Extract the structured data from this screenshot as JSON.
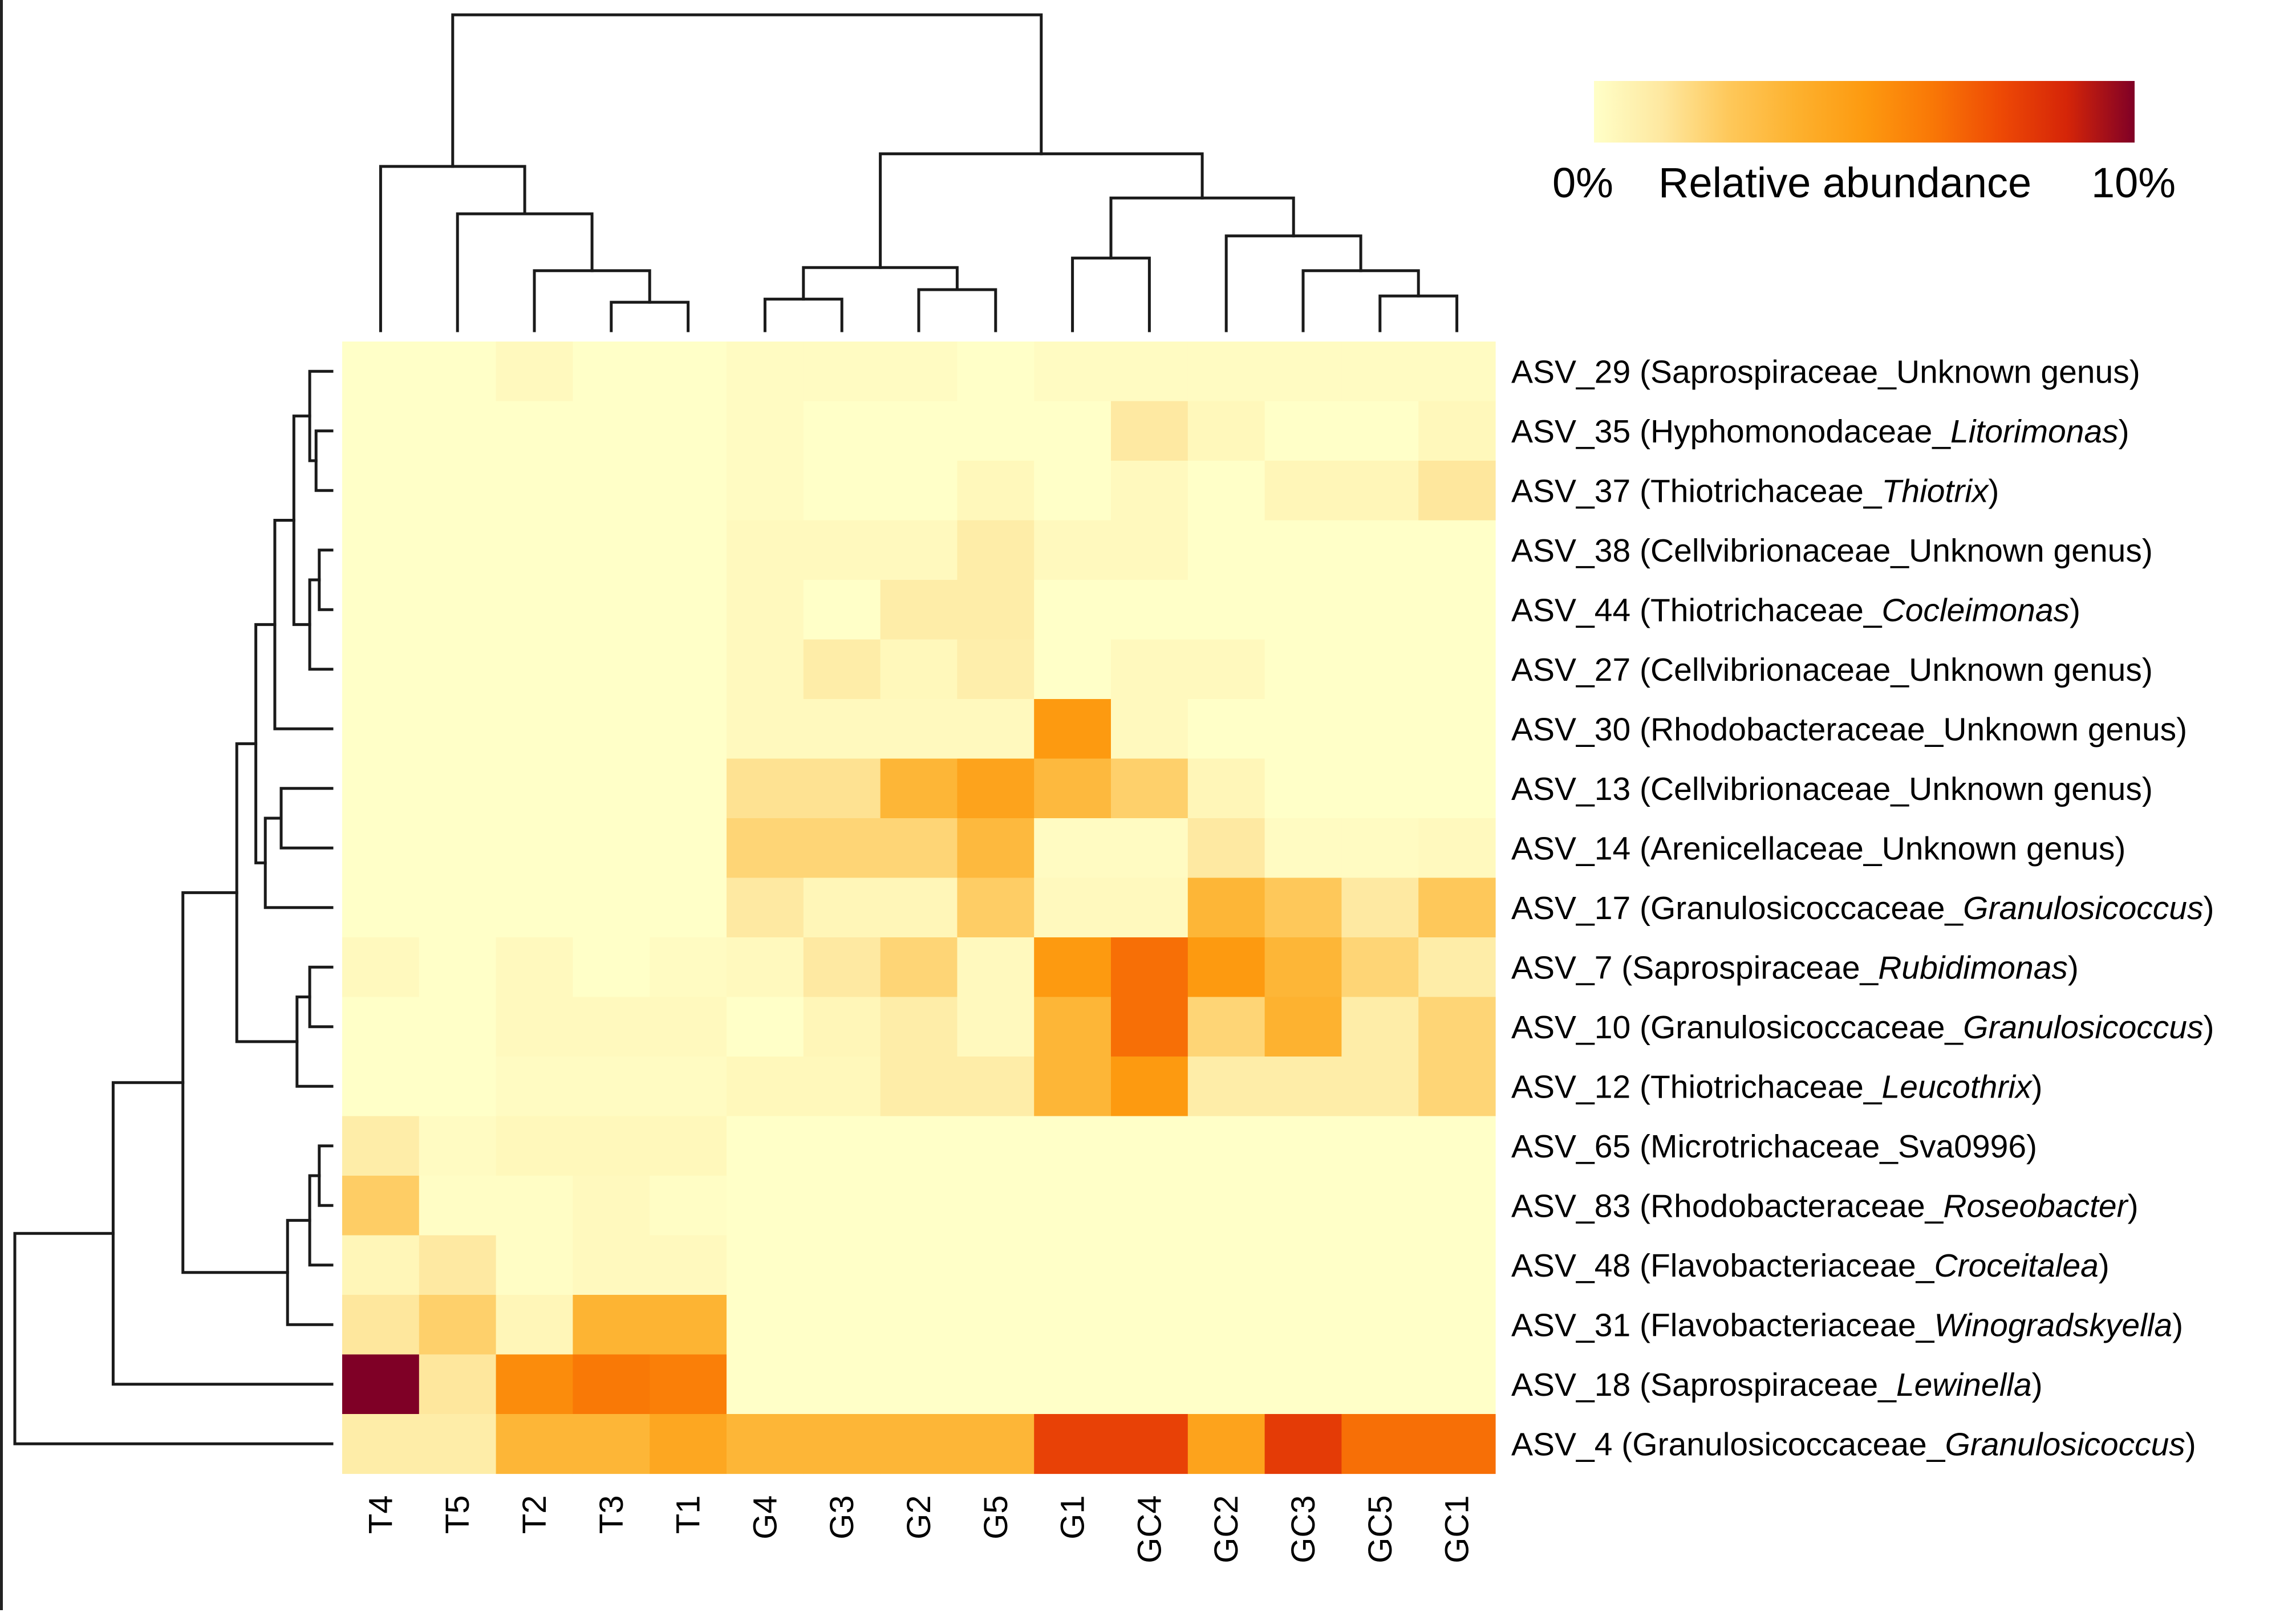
{
  "chart_data": {
    "type": "heatmap",
    "title": "",
    "color_scale": {
      "label": "Relative abundance",
      "min_label": "0%",
      "max_label": "10%",
      "min": 0,
      "max": 10,
      "units": "%",
      "colors": [
        "#ffffc8",
        "#fee8a0",
        "#fec85a",
        "#fdb12e",
        "#fd9a10",
        "#f97806",
        "#ee4a05",
        "#d52508",
        "#7f0026"
      ]
    },
    "columns": [
      "T4",
      "T5",
      "T2",
      "T3",
      "T1",
      "G4",
      "G3",
      "G2",
      "G5",
      "G1",
      "GC4",
      "GC2",
      "GC3",
      "GC5",
      "GC1"
    ],
    "rows": [
      {
        "id": "ASV_29",
        "family": "Saprospiraceae",
        "genus": "Unknown genus",
        "italic": false
      },
      {
        "id": "ASV_35",
        "family": "Hyphomonodaceae",
        "genus": "Litorimonas",
        "italic": true
      },
      {
        "id": "ASV_37",
        "family": "Thiotrichaceae",
        "genus": "Thiotrix",
        "italic": true
      },
      {
        "id": "ASV_38",
        "family": "Cellvibrionaceae",
        "genus": "Unknown genus",
        "italic": false
      },
      {
        "id": "ASV_44",
        "family": "Thiotrichaceae",
        "genus": "Cocleimonas",
        "italic": true
      },
      {
        "id": "ASV_27",
        "family": "Cellvibrionaceae",
        "genus": "Unknown genus",
        "italic": false
      },
      {
        "id": "ASV_30",
        "family": "Rhodobacteraceae",
        "genus": "Unknown genus",
        "italic": false
      },
      {
        "id": "ASV_13",
        "family": "Cellvibrionaceae",
        "genus": "Unknown genus",
        "italic": false
      },
      {
        "id": "ASV_14",
        "family": "Arenicellaceae",
        "genus": "Unknown genus",
        "italic": false
      },
      {
        "id": "ASV_17",
        "family": "Granulosicoccaceae",
        "genus": "Granulosicoccus",
        "italic": true
      },
      {
        "id": "ASV_7",
        "family": "Saprospiraceae",
        "genus": "Rubidimonas",
        "italic": true
      },
      {
        "id": "ASV_10",
        "family": "Granulosicoccaceae",
        "genus": "Granulosicoccus",
        "italic": true
      },
      {
        "id": "ASV_12",
        "family": "Thiotrichaceae",
        "genus": "Leucothrix",
        "italic": true
      },
      {
        "id": "ASV_65",
        "family": "Microtrichaceae",
        "genus": "Sva0996",
        "italic": false
      },
      {
        "id": "ASV_83",
        "family": "Rhodobacteraceae",
        "genus": "Roseobacter",
        "italic": true
      },
      {
        "id": "ASV_48",
        "family": "Flavobacteriaceae",
        "genus": "Croceitalea",
        "italic": true
      },
      {
        "id": "ASV_31",
        "family": "Flavobacteriaceae",
        "genus": "Winogradskyella",
        "italic": true
      },
      {
        "id": "ASV_18",
        "family": "Saprospiraceae",
        "genus": "Lewinella",
        "italic": true
      },
      {
        "id": "ASV_4",
        "family": "Granulosicoccaceae",
        "genus": "Granulosicoccus",
        "italic": true
      }
    ],
    "values": [
      [
        0.0,
        0.0,
        0.3,
        0.0,
        0.0,
        0.2,
        0.2,
        0.2,
        0.0,
        0.2,
        0.2,
        0.2,
        0.2,
        0.2,
        0.2
      ],
      [
        0.0,
        0.0,
        0.0,
        0.0,
        0.0,
        0.2,
        0.0,
        0.0,
        0.0,
        0.0,
        1.2,
        0.4,
        0.0,
        0.0,
        0.4
      ],
      [
        0.0,
        0.0,
        0.0,
        0.0,
        0.0,
        0.2,
        0.0,
        0.0,
        0.4,
        0.0,
        0.3,
        0.0,
        0.5,
        0.5,
        1.3
      ],
      [
        0.0,
        0.0,
        0.0,
        0.0,
        0.0,
        0.3,
        0.3,
        0.3,
        1.0,
        0.3,
        0.3,
        0.0,
        0.0,
        0.0,
        0.0
      ],
      [
        0.0,
        0.0,
        0.0,
        0.0,
        0.0,
        0.3,
        0.0,
        1.0,
        1.0,
        0.0,
        0.0,
        0.0,
        0.0,
        0.0,
        0.0
      ],
      [
        0.0,
        0.0,
        0.0,
        0.0,
        0.0,
        0.3,
        1.0,
        0.4,
        0.9,
        0.0,
        0.3,
        0.3,
        0.0,
        0.0,
        0.0
      ],
      [
        0.0,
        0.0,
        0.0,
        0.0,
        0.0,
        0.3,
        0.3,
        0.3,
        0.3,
        5.0,
        0.3,
        0.0,
        0.0,
        0.0,
        0.0
      ],
      [
        0.0,
        0.0,
        0.0,
        0.0,
        0.0,
        1.5,
        1.5,
        3.5,
        4.5,
        3.3,
        2.2,
        0.5,
        0.0,
        0.0,
        0.0
      ],
      [
        0.0,
        0.0,
        0.0,
        0.0,
        0.0,
        2.0,
        2.0,
        2.0,
        3.3,
        0.2,
        0.2,
        1.2,
        0.2,
        0.2,
        0.3
      ],
      [
        0.0,
        0.0,
        0.0,
        0.0,
        0.0,
        1.2,
        0.5,
        0.5,
        2.3,
        0.3,
        0.3,
        3.5,
        2.5,
        1.2,
        2.5
      ],
      [
        0.3,
        0.0,
        0.3,
        0.0,
        0.2,
        0.3,
        1.2,
        2.0,
        0.3,
        5.0,
        6.5,
        5.0,
        3.5,
        2.0,
        1.0
      ],
      [
        0.0,
        0.0,
        0.3,
        0.3,
        0.3,
        0.0,
        0.5,
        1.0,
        0.3,
        3.5,
        6.5,
        2.0,
        3.7,
        1.0,
        2.0
      ],
      [
        0.0,
        0.0,
        0.2,
        0.2,
        0.2,
        0.4,
        0.4,
        1.0,
        1.0,
        3.5,
        5.0,
        1.0,
        1.0,
        1.0,
        2.0
      ],
      [
        1.0,
        0.2,
        0.4,
        0.4,
        0.4,
        0.0,
        0.0,
        0.0,
        0.0,
        0.0,
        0.0,
        0.0,
        0.0,
        0.0,
        0.0
      ],
      [
        2.3,
        0.1,
        0.1,
        0.3,
        0.1,
        0.0,
        0.0,
        0.0,
        0.0,
        0.0,
        0.0,
        0.0,
        0.0,
        0.0,
        0.0
      ],
      [
        0.5,
        1.2,
        0.1,
        0.3,
        0.3,
        0.0,
        0.0,
        0.0,
        0.0,
        0.0,
        0.0,
        0.0,
        0.0,
        0.0,
        0.0
      ],
      [
        1.3,
        2.2,
        0.5,
        3.6,
        3.6,
        0.0,
        0.0,
        0.0,
        0.0,
        0.0,
        0.0,
        0.0,
        0.0,
        0.0,
        0.0
      ],
      [
        10.0,
        1.3,
        5.5,
        6.2,
        6.0,
        0.0,
        0.0,
        0.0,
        0.0,
        0.0,
        0.0,
        0.0,
        0.0,
        0.0,
        0.0
      ],
      [
        1.0,
        1.0,
        3.5,
        3.5,
        4.3,
        3.5,
        3.5,
        3.5,
        3.5,
        7.8,
        7.8,
        4.5,
        8.0,
        6.5,
        6.5
      ]
    ]
  }
}
